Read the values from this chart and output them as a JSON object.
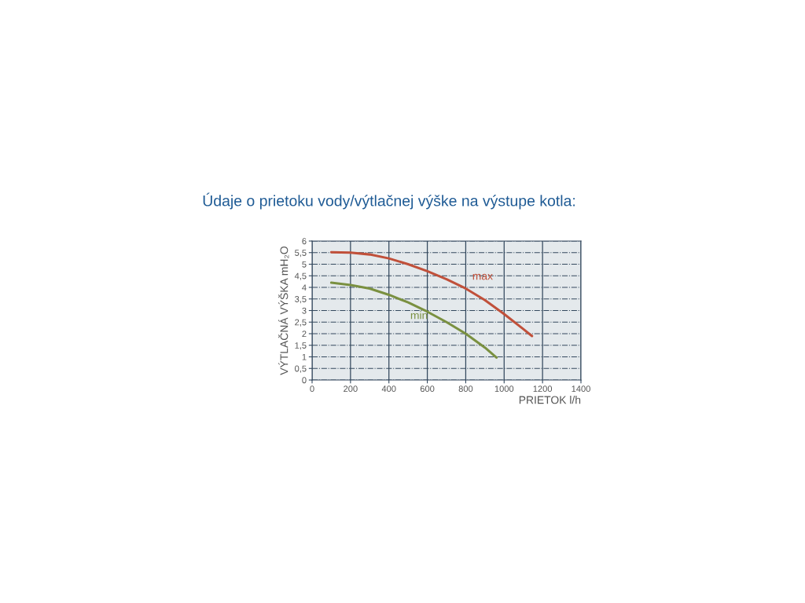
{
  "chart_data": {
    "type": "line",
    "title": "Údaje o prietoku vody/výtlačnej výške na výstupe kotla:",
    "xlabel": "PRIETOK l/h",
    "ylabel": "VÝTLAČNÁ VÝŠKA mH₂O",
    "xlim": [
      0,
      1400
    ],
    "xticks": [
      0,
      200,
      400,
      600,
      800,
      1000,
      1200,
      1400
    ],
    "ylim": [
      0,
      6
    ],
    "yticks": [
      0,
      {
        "value": 0.5,
        "label": "0,5"
      },
      1,
      {
        "value": 1.5,
        "label": "1,5"
      },
      2,
      {
        "value": 2.5,
        "label": "2,5"
      },
      3,
      {
        "value": 3.5,
        "label": "3,5"
      },
      4,
      {
        "value": 4.5,
        "label": "4,5"
      },
      5,
      {
        "value": 5.5,
        "label": "5,5"
      },
      6
    ],
    "grid": true,
    "legend": false,
    "marker": "none",
    "line_style": "solid",
    "series": [
      {
        "name": "max",
        "color": "#c0503a",
        "x": [
          100,
          200,
          300,
          400,
          500,
          600,
          700,
          800,
          900,
          1000,
          1100,
          1145
        ],
        "values": [
          5.52,
          5.5,
          5.42,
          5.25,
          5.0,
          4.7,
          4.35,
          3.95,
          3.45,
          2.85,
          2.2,
          1.9
        ]
      },
      {
        "name": "min",
        "color": "#7a9040",
        "x": [
          100,
          200,
          300,
          400,
          500,
          600,
          700,
          800,
          900,
          960
        ],
        "values": [
          4.2,
          4.1,
          3.95,
          3.68,
          3.35,
          2.95,
          2.5,
          2.0,
          1.4,
          0.97
        ]
      }
    ]
  }
}
